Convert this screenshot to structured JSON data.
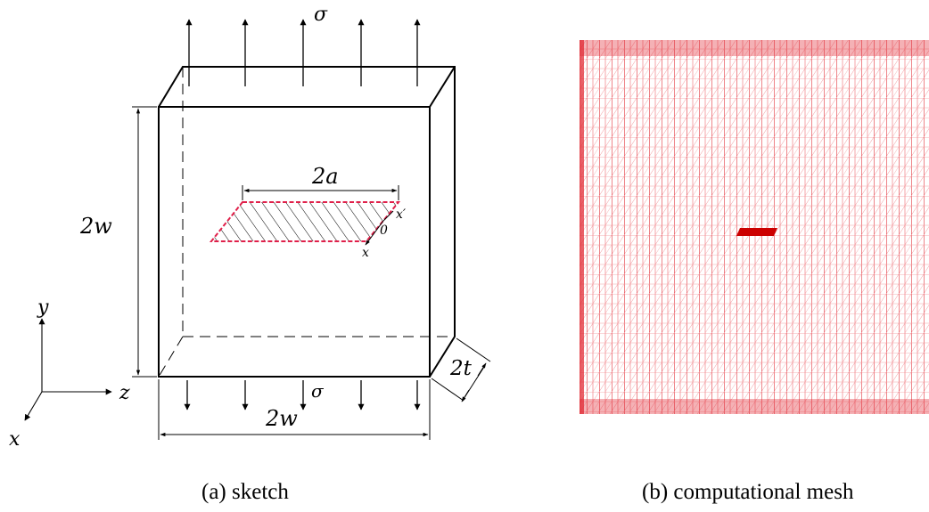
{
  "sketch": {
    "caption": "(a) sketch",
    "labels": {
      "sigma_top": "σ",
      "sigma_bottom": "σ",
      "height": "2w",
      "width": "2w",
      "thickness": "2t",
      "crack_length": "2a",
      "crack_axis_x_prime": "x′",
      "crack_origin": "0",
      "crack_axis_x": "x"
    },
    "axes": {
      "y": "y",
      "z": "z",
      "x": "x"
    }
  },
  "mesh": {
    "caption": "(b) computational mesh",
    "color": "#e0202a",
    "crack_color": "#cc0000"
  },
  "colors": {
    "crack_outline": "#e0204a",
    "ink": "#000000"
  }
}
